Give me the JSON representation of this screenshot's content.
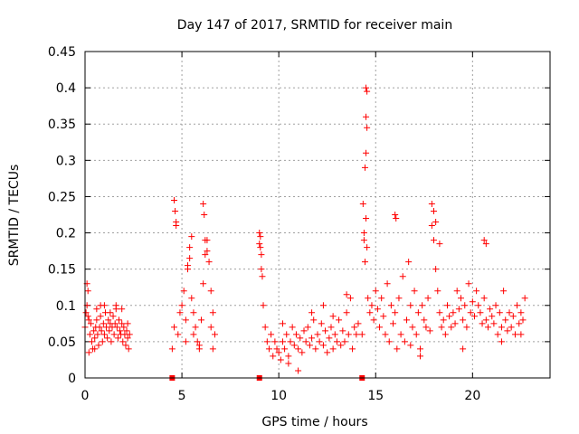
{
  "chart_data": {
    "type": "scatter",
    "title": "Day 147 of 2017, SRMTID for receiver main",
    "xlabel": "GPS time / hours",
    "ylabel": "SRMTID / TECUs",
    "xlim": [
      0,
      24
    ],
    "ylim": [
      0,
      0.45
    ],
    "xticks": [
      0,
      5,
      10,
      15,
      20
    ],
    "yticks": [
      0,
      0.05,
      0.1,
      0.15,
      0.2,
      0.25,
      0.3,
      0.35,
      0.4,
      0.45
    ],
    "xtick_labels": [
      "0",
      "5",
      "10",
      "15",
      "20"
    ],
    "ytick_labels": [
      "0",
      "0.05",
      "0.1",
      "0.15",
      "0.2",
      "0.25",
      "0.3",
      "0.35",
      "0.4",
      "0.45"
    ],
    "grid": true,
    "marker": "+",
    "series_color": "#ff0000",
    "gap_markers_x": [
      4.5,
      9.0,
      14.3
    ],
    "series": [
      {
        "name": "SRMTID",
        "x": [
          0.0,
          0.05,
          0.1,
          0.15,
          0.2,
          0.25,
          0.3,
          0.35,
          0.4,
          0.45,
          0.5,
          0.55,
          0.6,
          0.65,
          0.7,
          0.75,
          0.8,
          0.85,
          0.9,
          0.95,
          1.0,
          1.05,
          1.1,
          1.15,
          1.2,
          1.25,
          1.3,
          1.35,
          1.4,
          1.45,
          1.5,
          1.55,
          1.6,
          1.65,
          1.7,
          1.75,
          1.8,
          1.85,
          1.9,
          1.95,
          2.0,
          2.05,
          2.1,
          2.15,
          2.2,
          2.25,
          2.3,
          0.1,
          0.15,
          0.2,
          0.5,
          0.6,
          0.8,
          1.0,
          1.3,
          1.6,
          1.9,
          2.2,
          4.5,
          4.6,
          4.7,
          4.8,
          4.9,
          5.0,
          5.1,
          5.2,
          5.3,
          5.4,
          5.5,
          5.6,
          5.7,
          5.8,
          5.9,
          6.0,
          6.1,
          6.2,
          6.3,
          6.4,
          6.5,
          6.6,
          6.7,
          4.6,
          4.65,
          4.7,
          5.3,
          5.4,
          5.5,
          6.1,
          6.15,
          6.2,
          6.3,
          5.2,
          5.6,
          5.9,
          6.5,
          6.6,
          9.0,
          9.05,
          9.1,
          9.15,
          9.2,
          9.3,
          9.4,
          9.5,
          9.6,
          9.7,
          9.8,
          9.9,
          10.0,
          10.1,
          10.2,
          10.3,
          10.4,
          10.5,
          10.6,
          10.7,
          10.8,
          10.9,
          11.0,
          11.1,
          11.2,
          11.3,
          11.4,
          11.5,
          11.6,
          11.7,
          11.8,
          11.9,
          12.0,
          12.1,
          12.2,
          12.3,
          12.4,
          12.5,
          12.6,
          12.7,
          12.8,
          12.9,
          13.0,
          13.1,
          13.2,
          13.3,
          13.4,
          13.5,
          13.6,
          13.7,
          13.8,
          13.9,
          14.0,
          14.1,
          9.0,
          9.05,
          9.1,
          10.5,
          11.0,
          12.3,
          13.5,
          10.2,
          11.7,
          12.8,
          14.3,
          14.35,
          14.4,
          14.45,
          14.5,
          14.55,
          14.6,
          14.7,
          14.8,
          14.9,
          15.0,
          15.1,
          15.2,
          15.3,
          15.4,
          15.5,
          15.6,
          15.7,
          15.8,
          15.9,
          16.0,
          16.1,
          16.2,
          16.3,
          16.4,
          16.5,
          16.6,
          16.7,
          16.8,
          16.9,
          17.0,
          17.1,
          17.2,
          17.3,
          17.4,
          17.5,
          17.6,
          17.7,
          17.8,
          17.9,
          18.0,
          18.1,
          18.2,
          18.3,
          18.4,
          18.5,
          18.6,
          18.7,
          18.8,
          18.9,
          19.0,
          19.1,
          19.2,
          19.3,
          19.4,
          19.5,
          19.6,
          19.7,
          19.8,
          19.9,
          20.0,
          20.1,
          20.2,
          20.3,
          20.4,
          20.5,
          20.6,
          20.7,
          20.8,
          20.9,
          21.0,
          21.1,
          21.2,
          21.3,
          21.4,
          21.5,
          21.6,
          21.7,
          21.8,
          21.9,
          22.0,
          22.1,
          22.2,
          22.3,
          22.4,
          22.5,
          22.6,
          22.7,
          14.5,
          14.55,
          14.5,
          14.55,
          14.5,
          14.45,
          14.4,
          16.0,
          16.05,
          17.9,
          18.0,
          18.1,
          18.3,
          20.6,
          20.7,
          16.8,
          17.3,
          19.5,
          21.5,
          22.5
        ],
        "y": [
          0.07,
          0.09,
          0.13,
          0.12,
          0.08,
          0.06,
          0.075,
          0.05,
          0.04,
          0.065,
          0.055,
          0.07,
          0.08,
          0.06,
          0.045,
          0.07,
          0.085,
          0.065,
          0.05,
          0.075,
          0.06,
          0.09,
          0.07,
          0.055,
          0.08,
          0.065,
          0.075,
          0.05,
          0.07,
          0.085,
          0.06,
          0.075,
          0.095,
          0.07,
          0.055,
          0.08,
          0.065,
          0.06,
          0.075,
          0.05,
          0.07,
          0.06,
          0.045,
          0.065,
          0.055,
          0.04,
          0.06,
          0.1,
          0.085,
          0.035,
          0.04,
          0.095,
          0.1,
          0.1,
          0.09,
          0.1,
          0.095,
          0.075,
          0.04,
          0.07,
          0.21,
          0.06,
          0.09,
          0.1,
          0.12,
          0.08,
          0.15,
          0.18,
          0.11,
          0.09,
          0.07,
          0.05,
          0.04,
          0.08,
          0.13,
          0.17,
          0.19,
          0.16,
          0.12,
          0.09,
          0.06,
          0.245,
          0.23,
          0.215,
          0.155,
          0.165,
          0.195,
          0.24,
          0.225,
          0.19,
          0.175,
          0.05,
          0.06,
          0.045,
          0.07,
          0.04,
          0.2,
          0.18,
          0.15,
          0.14,
          0.1,
          0.07,
          0.05,
          0.04,
          0.06,
          0.03,
          0.05,
          0.04,
          0.035,
          0.025,
          0.05,
          0.04,
          0.06,
          0.03,
          0.05,
          0.07,
          0.045,
          0.06,
          0.04,
          0.055,
          0.035,
          0.065,
          0.05,
          0.07,
          0.045,
          0.055,
          0.08,
          0.04,
          0.06,
          0.05,
          0.075,
          0.045,
          0.065,
          0.035,
          0.055,
          0.07,
          0.04,
          0.06,
          0.05,
          0.08,
          0.045,
          0.065,
          0.05,
          0.09,
          0.06,
          0.11,
          0.04,
          0.07,
          0.06,
          0.075,
          0.185,
          0.195,
          0.17,
          0.02,
          0.01,
          0.1,
          0.115,
          0.075,
          0.09,
          0.085,
          0.06,
          0.24,
          0.2,
          0.16,
          0.22,
          0.18,
          0.11,
          0.09,
          0.1,
          0.08,
          0.12,
          0.095,
          0.07,
          0.11,
          0.085,
          0.06,
          0.13,
          0.05,
          0.1,
          0.075,
          0.09,
          0.04,
          0.11,
          0.06,
          0.14,
          0.05,
          0.08,
          0.16,
          0.1,
          0.07,
          0.12,
          0.06,
          0.09,
          0.04,
          0.1,
          0.08,
          0.07,
          0.11,
          0.065,
          0.21,
          0.19,
          0.15,
          0.12,
          0.09,
          0.07,
          0.08,
          0.06,
          0.1,
          0.085,
          0.07,
          0.09,
          0.075,
          0.12,
          0.095,
          0.11,
          0.08,
          0.1,
          0.07,
          0.13,
          0.09,
          0.105,
          0.085,
          0.12,
          0.1,
          0.09,
          0.075,
          0.11,
          0.08,
          0.07,
          0.095,
          0.085,
          0.075,
          0.1,
          0.06,
          0.09,
          0.07,
          0.12,
          0.08,
          0.065,
          0.09,
          0.07,
          0.085,
          0.06,
          0.1,
          0.075,
          0.09,
          0.08,
          0.11,
          0.4,
          0.395,
          0.36,
          0.345,
          0.31,
          0.29,
          0.19,
          0.225,
          0.22,
          0.24,
          0.23,
          0.215,
          0.185,
          0.19,
          0.185,
          0.045,
          0.03,
          0.04,
          0.05,
          0.06
        ]
      }
    ]
  }
}
